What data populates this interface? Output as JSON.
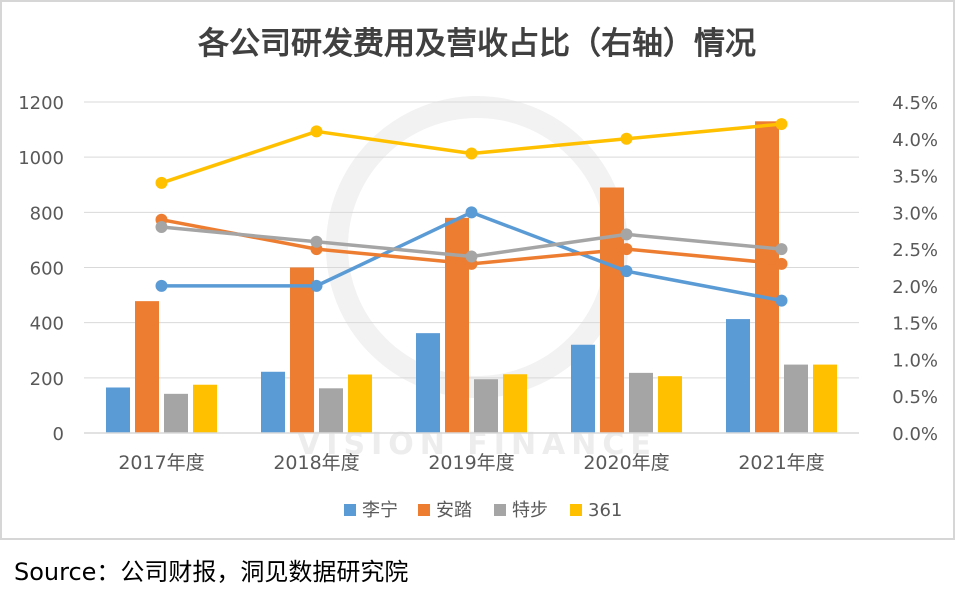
{
  "source_text": "Source：公司财报，洞见数据研究院",
  "watermark_text": "VISION FINANCE",
  "colors": {
    "李宁": "#5b9bd5",
    "安踏": "#ed7d31",
    "特步": "#a5a5a5",
    "361": "#ffc000",
    "grid": "#d9d9d9",
    "tick_text": "#595959",
    "title_text": "#404040"
  },
  "chart_data": {
    "type": "bar",
    "title": "各公司研发费用及营收占比（右轴）情况",
    "categories": [
      "2017年度",
      "2018年度",
      "2019年度",
      "2020年度",
      "2021年度"
    ],
    "ylim": [
      0,
      1200
    ],
    "y_ticks": [
      "0",
      "200",
      "400",
      "600",
      "800",
      "1000",
      "1200"
    ],
    "y2lim": [
      0,
      4.5
    ],
    "y2_ticks": [
      "0.0%",
      "0.5%",
      "1.0%",
      "1.5%",
      "2.0%",
      "2.5%",
      "3.0%",
      "3.5%",
      "4.0%",
      "4.5%"
    ],
    "grid": true,
    "legend_position": "bottom",
    "bar_series": [
      {
        "name": "李宁",
        "values": [
          165,
          222,
          362,
          320,
          413
        ]
      },
      {
        "name": "安踏",
        "values": [
          478,
          600,
          780,
          890,
          1130
        ]
      },
      {
        "name": "特步",
        "values": [
          142,
          162,
          195,
          218,
          248
        ]
      },
      {
        "name": "361",
        "values": [
          175,
          212,
          213,
          206,
          248
        ]
      }
    ],
    "line_series": [
      {
        "name": "李宁",
        "axis": "right",
        "values": [
          2.0,
          2.0,
          3.0,
          2.2,
          1.8
        ]
      },
      {
        "name": "安踏",
        "axis": "right",
        "values": [
          2.9,
          2.5,
          2.3,
          2.5,
          2.3
        ]
      },
      {
        "name": "特步",
        "axis": "right",
        "values": [
          2.8,
          2.6,
          2.4,
          2.7,
          2.5
        ]
      },
      {
        "name": "361",
        "axis": "right",
        "values": [
          3.4,
          4.1,
          3.8,
          4.0,
          4.2
        ]
      }
    ]
  }
}
